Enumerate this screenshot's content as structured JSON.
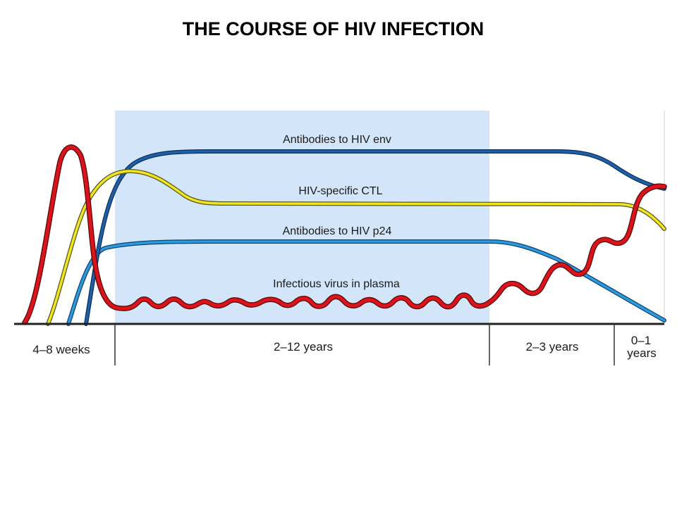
{
  "title": "THE COURSE OF HIV INFECTION",
  "colors": {
    "shaded_region": "#d3e6f9",
    "env_antibodies": "#1f5fa8",
    "ctl": "#f2e51d",
    "p24_antibodies": "#2b9be0",
    "virus": "#d9141a",
    "axis": "#222222"
  },
  "curves": {
    "env": "Antibodies to HIV env",
    "ctl": "HIV-specific CTL",
    "p24": "Antibodies to HIV p24",
    "virus": "Infectious virus in plasma"
  },
  "periods": {
    "p1": "4–8 weeks",
    "p2": "2–12 years",
    "p3": "2–3 years",
    "p4_line1": "0–1",
    "p4_line2": "years"
  }
}
